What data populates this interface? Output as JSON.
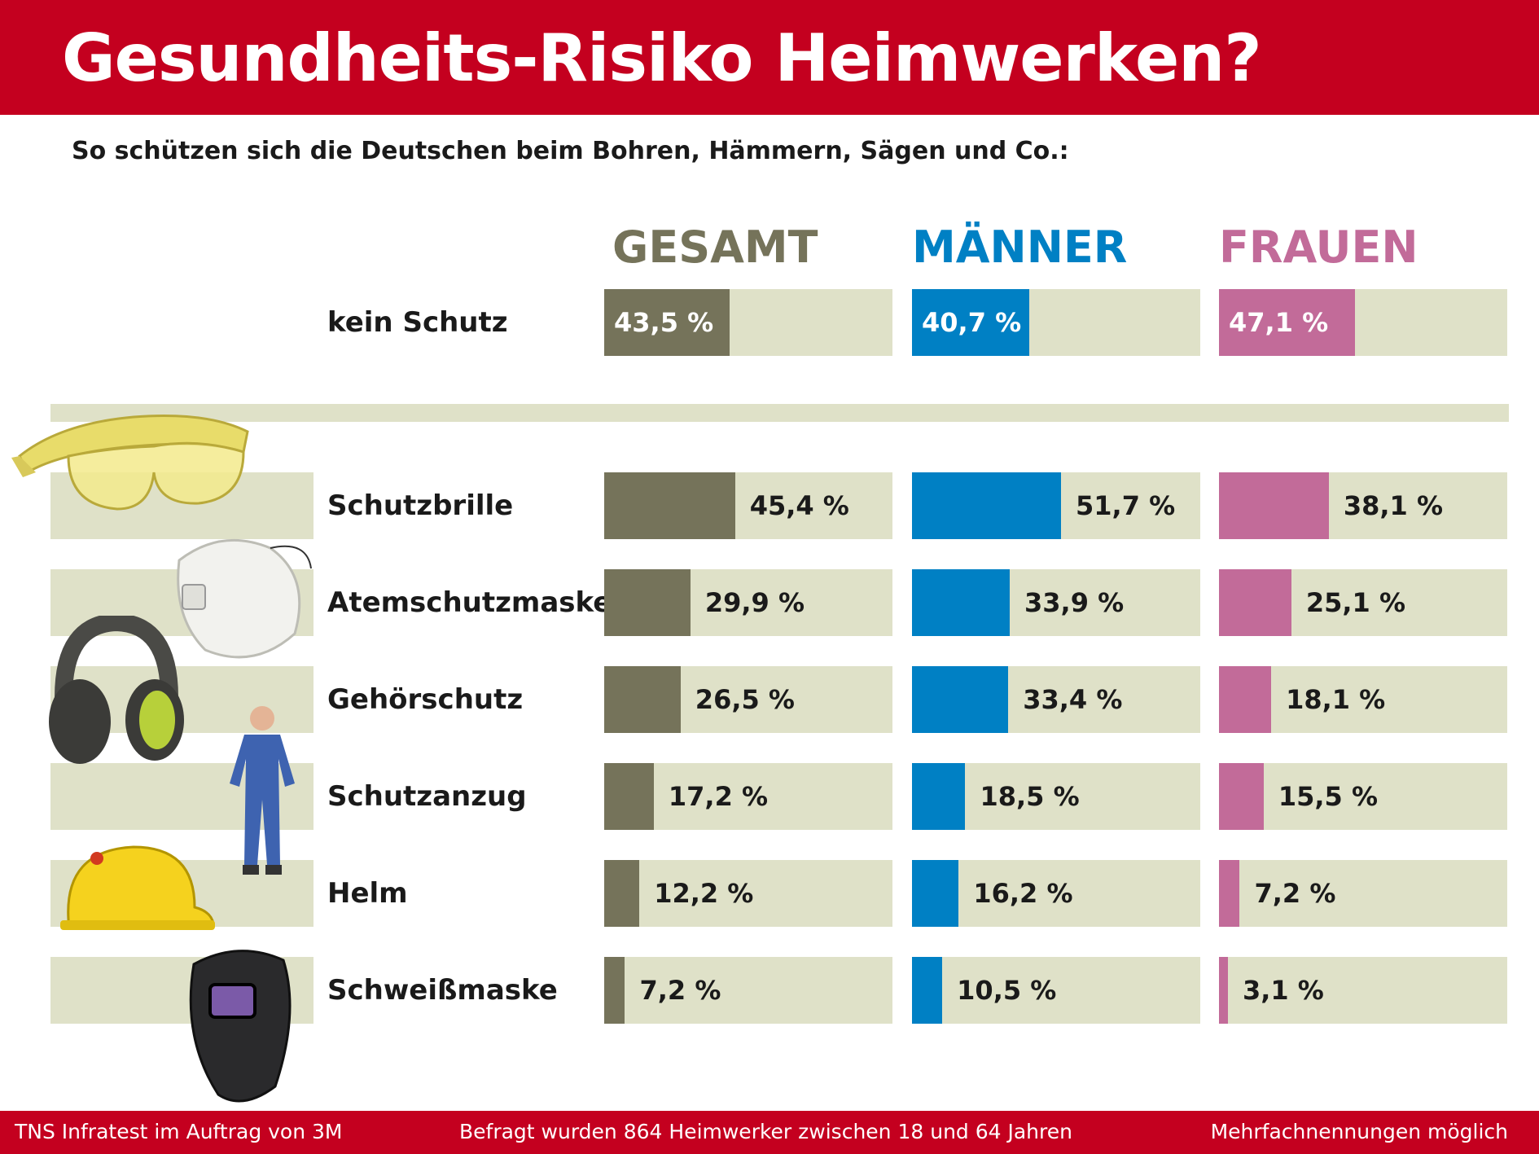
{
  "title": "Gesundheits-Risiko Heimwerken?",
  "subtitle": "So schützen sich die Deutschen beim Bohren, Hämmern, Sägen und Co.:",
  "footer": {
    "left": "TNS Infratest im Auftrag von 3M",
    "center": "Befragt wurden 864 Heimwerker zwischen 18 und 64 Jahren",
    "right": "Mehrfachnennungen möglich"
  },
  "colors": {
    "brand": "#c4001f",
    "track": "#dfe1c8",
    "gesamt": "#75735a",
    "maenner": "#0080c4",
    "frauen": "#c26b99"
  },
  "chart_data": {
    "type": "bar",
    "orientation": "horizontal",
    "unit": "%",
    "xlim": [
      0,
      100
    ],
    "series_labels": [
      "GESAMT",
      "MÄNNER",
      "FRAUEN"
    ],
    "categories": [
      "kein Schutz",
      "Schutzbrille",
      "Atemschutzmaske",
      "Gehörschutz",
      "Schutzanzug",
      "Helm",
      "Schweißmaske"
    ],
    "series": [
      {
        "name": "GESAMT",
        "values": [
          43.5,
          45.4,
          29.9,
          26.5,
          17.2,
          12.2,
          7.2
        ],
        "labels": [
          "43,5 %",
          "45,4 %",
          "29,9 %",
          "26,5 %",
          "17,2 %",
          "12,2 %",
          "7,2 %"
        ]
      },
      {
        "name": "MÄNNER",
        "values": [
          40.7,
          51.7,
          33.9,
          33.4,
          18.5,
          16.2,
          10.5
        ],
        "labels": [
          "40,7 %",
          "51,7 %",
          "33,9 %",
          "33,4 %",
          "18,5 %",
          "16,2 %",
          "10,5 %"
        ]
      },
      {
        "name": "FRAUEN",
        "values": [
          47.1,
          38.1,
          25.1,
          18.1,
          15.5,
          7.2,
          3.1
        ],
        "labels": [
          "47,1 %",
          "38,1 %",
          "25,1 %",
          "18,1 %",
          "15,5 %",
          "7,2 %",
          "3,1 %"
        ]
      }
    ],
    "illustrations": [
      "safety-glasses-icon",
      "respirator-mask-icon",
      "ear-muffs-icon",
      "coverall-suit-icon",
      "hard-hat-icon",
      "welding-mask-icon"
    ]
  }
}
